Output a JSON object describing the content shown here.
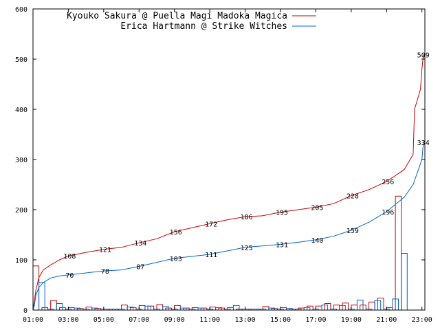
{
  "chart_data": {
    "type": "line",
    "title": "",
    "xlabel": "",
    "ylabel": "",
    "xlim": [
      "01:00",
      "23:10"
    ],
    "ylim": [
      0,
      600
    ],
    "grid": false,
    "legend_position": "top-left",
    "y_ticks": [
      "0",
      "100",
      "200",
      "300",
      "400",
      "500",
      "600"
    ],
    "x_ticks": [
      "01:00",
      "03:00",
      "05:00",
      "07:00",
      "09:00",
      "11:00",
      "13:00",
      "15:00",
      "17:00",
      "19:00",
      "21:00",
      "23:00"
    ],
    "series": [
      {
        "name": "Kyouko Sakura @ Puella Magi Madoka Magica",
        "color": "#cc0000",
        "cumulative": [
          [
            "01:00",
            0
          ],
          [
            "01:05",
            20
          ],
          [
            "01:10",
            40
          ],
          [
            "01:20",
            65
          ],
          [
            "01:35",
            80
          ],
          [
            "02:00",
            90
          ],
          [
            "02:30",
            100
          ],
          [
            "03:00",
            108
          ],
          [
            "04:00",
            115
          ],
          [
            "05:00",
            121
          ],
          [
            "06:00",
            125
          ],
          [
            "07:00",
            134
          ],
          [
            "08:00",
            142
          ],
          [
            "09:00",
            156
          ],
          [
            "10:00",
            164
          ],
          [
            "11:00",
            172
          ],
          [
            "12:00",
            180
          ],
          [
            "13:00",
            186
          ],
          [
            "14:00",
            188
          ],
          [
            "15:00",
            195
          ],
          [
            "16:00",
            200
          ],
          [
            "17:00",
            205
          ],
          [
            "18:00",
            212
          ],
          [
            "19:00",
            228
          ],
          [
            "20:00",
            240
          ],
          [
            "21:00",
            256
          ],
          [
            "22:00",
            280
          ],
          [
            "22:30",
            310
          ],
          [
            "22:35",
            400
          ],
          [
            "22:45",
            420
          ],
          [
            "22:55",
            440
          ],
          [
            "23:00",
            480
          ],
          [
            "23:05",
            509
          ]
        ],
        "labels": [
          {
            "time": "03:00",
            "value": 108
          },
          {
            "time": "05:00",
            "value": 121
          },
          {
            "time": "07:00",
            "value": 134
          },
          {
            "time": "09:00",
            "value": 156
          },
          {
            "time": "11:00",
            "value": 172
          },
          {
            "time": "13:00",
            "value": 186
          },
          {
            "time": "15:00",
            "value": 195
          },
          {
            "time": "17:00",
            "value": 205
          },
          {
            "time": "19:00",
            "value": 228
          },
          {
            "time": "21:00",
            "value": 256
          },
          {
            "time": "23:00",
            "value": 509
          }
        ],
        "bars": [
          {
            "start": "01:00",
            "end": "01:20",
            "value": 88
          },
          {
            "start": "01:30",
            "end": "01:50",
            "value": 5
          },
          {
            "start": "02:00",
            "end": "02:20",
            "value": 19
          },
          {
            "start": "02:30",
            "end": "02:50",
            "value": 5
          },
          {
            "start": "03:00",
            "end": "03:20",
            "value": 5
          },
          {
            "start": "03:30",
            "end": "03:50",
            "value": 3
          },
          {
            "start": "04:00",
            "end": "04:20",
            "value": 6
          },
          {
            "start": "04:30",
            "end": "04:50",
            "value": 3
          },
          {
            "start": "05:00",
            "end": "05:20",
            "value": 2
          },
          {
            "start": "05:30",
            "end": "05:50",
            "value": 2
          },
          {
            "start": "06:00",
            "end": "06:20",
            "value": 10
          },
          {
            "start": "06:30",
            "end": "06:50",
            "value": 5
          },
          {
            "start": "07:00",
            "end": "07:20",
            "value": 9
          },
          {
            "start": "07:30",
            "end": "07:50",
            "value": 8
          },
          {
            "start": "08:00",
            "end": "08:20",
            "value": 11
          },
          {
            "start": "08:30",
            "end": "08:50",
            "value": 4
          },
          {
            "start": "09:00",
            "end": "09:20",
            "value": 9
          },
          {
            "start": "09:30",
            "end": "09:50",
            "value": 4
          },
          {
            "start": "10:00",
            "end": "10:20",
            "value": 5
          },
          {
            "start": "10:30",
            "end": "10:50",
            "value": 4
          },
          {
            "start": "11:00",
            "end": "11:20",
            "value": 6
          },
          {
            "start": "11:30",
            "end": "11:50",
            "value": 4
          },
          {
            "start": "12:00",
            "end": "12:20",
            "value": 5
          },
          {
            "start": "12:30",
            "end": "12:50",
            "value": 2
          },
          {
            "start": "13:00",
            "end": "13:20",
            "value": 2
          },
          {
            "start": "13:30",
            "end": "13:50",
            "value": 2
          },
          {
            "start": "14:00",
            "end": "14:20",
            "value": 7
          },
          {
            "start": "14:30",
            "end": "14:50",
            "value": 3
          },
          {
            "start": "15:00",
            "end": "15:20",
            "value": 5
          },
          {
            "start": "15:30",
            "end": "15:50",
            "value": 2
          },
          {
            "start": "16:00",
            "end": "16:20",
            "value": 4
          },
          {
            "start": "16:30",
            "end": "16:50",
            "value": 8
          },
          {
            "start": "17:00",
            "end": "17:20",
            "value": 8
          },
          {
            "start": "17:30",
            "end": "17:50",
            "value": 13
          },
          {
            "start": "18:00",
            "end": "18:20",
            "value": 10
          },
          {
            "start": "18:30",
            "end": "18:50",
            "value": 14
          },
          {
            "start": "19:00",
            "end": "19:20",
            "value": 10
          },
          {
            "start": "19:30",
            "end": "19:50",
            "value": 10
          },
          {
            "start": "20:00",
            "end": "20:20",
            "value": 16
          },
          {
            "start": "20:30",
            "end": "20:50",
            "value": 24
          },
          {
            "start": "21:00",
            "end": "21:20",
            "value": 5
          },
          {
            "start": "21:30",
            "end": "21:50",
            "value": 227
          }
        ]
      },
      {
        "name": "Erica Hartmann @ Strike Witches",
        "color": "#0066cc",
        "cumulative": [
          [
            "01:00",
            0
          ],
          [
            "01:05",
            10
          ],
          [
            "01:10",
            30
          ],
          [
            "01:20",
            45
          ],
          [
            "01:35",
            55
          ],
          [
            "02:00",
            64
          ],
          [
            "02:30",
            68
          ],
          [
            "03:00",
            70
          ],
          [
            "04:00",
            74
          ],
          [
            "05:00",
            78
          ],
          [
            "06:00",
            80
          ],
          [
            "07:00",
            87
          ],
          [
            "08:00",
            95
          ],
          [
            "09:00",
            103
          ],
          [
            "10:00",
            107
          ],
          [
            "11:00",
            111
          ],
          [
            "12:00",
            118
          ],
          [
            "13:00",
            125
          ],
          [
            "14:00",
            128
          ],
          [
            "15:00",
            131
          ],
          [
            "16:00",
            135
          ],
          [
            "17:00",
            140
          ],
          [
            "18:00",
            147
          ],
          [
            "19:00",
            159
          ],
          [
            "20:00",
            175
          ],
          [
            "21:00",
            196
          ],
          [
            "22:00",
            225
          ],
          [
            "22:30",
            250
          ],
          [
            "22:45",
            275
          ],
          [
            "23:00",
            300
          ],
          [
            "23:05",
            334
          ]
        ],
        "labels": [
          {
            "time": "03:00",
            "value": 70
          },
          {
            "time": "05:00",
            "value": 78
          },
          {
            "time": "07:00",
            "value": 87
          },
          {
            "time": "09:00",
            "value": 103
          },
          {
            "time": "11:00",
            "value": 111
          },
          {
            "time": "13:00",
            "value": 125
          },
          {
            "time": "15:00",
            "value": 131
          },
          {
            "time": "17:00",
            "value": 140
          },
          {
            "time": "19:00",
            "value": 159
          },
          {
            "time": "21:00",
            "value": 196
          },
          {
            "time": "23:00",
            "value": 334
          }
        ],
        "bars": [
          {
            "start": "01:20",
            "end": "01:40",
            "value": 55
          },
          {
            "start": "01:50",
            "end": "02:10",
            "value": 2
          },
          {
            "start": "02:20",
            "end": "02:40",
            "value": 13
          },
          {
            "start": "02:50",
            "end": "03:10",
            "value": 2
          },
          {
            "start": "03:20",
            "end": "03:40",
            "value": 4
          },
          {
            "start": "03:50",
            "end": "04:10",
            "value": 2
          },
          {
            "start": "04:20",
            "end": "04:40",
            "value": 4
          },
          {
            "start": "04:50",
            "end": "05:10",
            "value": 2
          },
          {
            "start": "05:20",
            "end": "05:40",
            "value": 2
          },
          {
            "start": "05:50",
            "end": "06:10",
            "value": 2
          },
          {
            "start": "06:20",
            "end": "06:40",
            "value": 6
          },
          {
            "start": "06:50",
            "end": "07:10",
            "value": 2
          },
          {
            "start": "07:20",
            "end": "07:40",
            "value": 8
          },
          {
            "start": "07:50",
            "end": "08:10",
            "value": 2
          },
          {
            "start": "08:20",
            "end": "08:40",
            "value": 7
          },
          {
            "start": "08:50",
            "end": "09:10",
            "value": 2
          },
          {
            "start": "09:20",
            "end": "09:40",
            "value": 4
          },
          {
            "start": "09:50",
            "end": "10:10",
            "value": 2
          },
          {
            "start": "10:20",
            "end": "10:40",
            "value": 4
          },
          {
            "start": "10:50",
            "end": "11:10",
            "value": 2
          },
          {
            "start": "11:20",
            "end": "11:40",
            "value": 5
          },
          {
            "start": "11:50",
            "end": "12:10",
            "value": 2
          },
          {
            "start": "12:20",
            "end": "12:40",
            "value": 9
          },
          {
            "start": "12:50",
            "end": "13:10",
            "value": 2
          },
          {
            "start": "13:20",
            "end": "13:40",
            "value": 2
          },
          {
            "start": "13:50",
            "end": "14:10",
            "value": 2
          },
          {
            "start": "14:20",
            "end": "14:40",
            "value": 4
          },
          {
            "start": "14:50",
            "end": "15:10",
            "value": 2
          },
          {
            "start": "15:20",
            "end": "15:40",
            "value": 3
          },
          {
            "start": "15:50",
            "end": "16:10",
            "value": 2
          },
          {
            "start": "16:20",
            "end": "16:40",
            "value": 5
          },
          {
            "start": "16:50",
            "end": "17:10",
            "value": 2
          },
          {
            "start": "17:20",
            "end": "17:40",
            "value": 10
          },
          {
            "start": "17:50",
            "end": "18:10",
            "value": 2
          },
          {
            "start": "18:20",
            "end": "18:40",
            "value": 9
          },
          {
            "start": "18:50",
            "end": "19:10",
            "value": 2
          },
          {
            "start": "19:20",
            "end": "19:40",
            "value": 20
          },
          {
            "start": "19:50",
            "end": "20:10",
            "value": 2
          },
          {
            "start": "20:20",
            "end": "20:40",
            "value": 19
          },
          {
            "start": "20:50",
            "end": "21:10",
            "value": 2
          },
          {
            "start": "21:20",
            "end": "21:40",
            "value": 22
          },
          {
            "start": "21:50",
            "end": "22:10",
            "value": 113
          }
        ]
      }
    ]
  }
}
